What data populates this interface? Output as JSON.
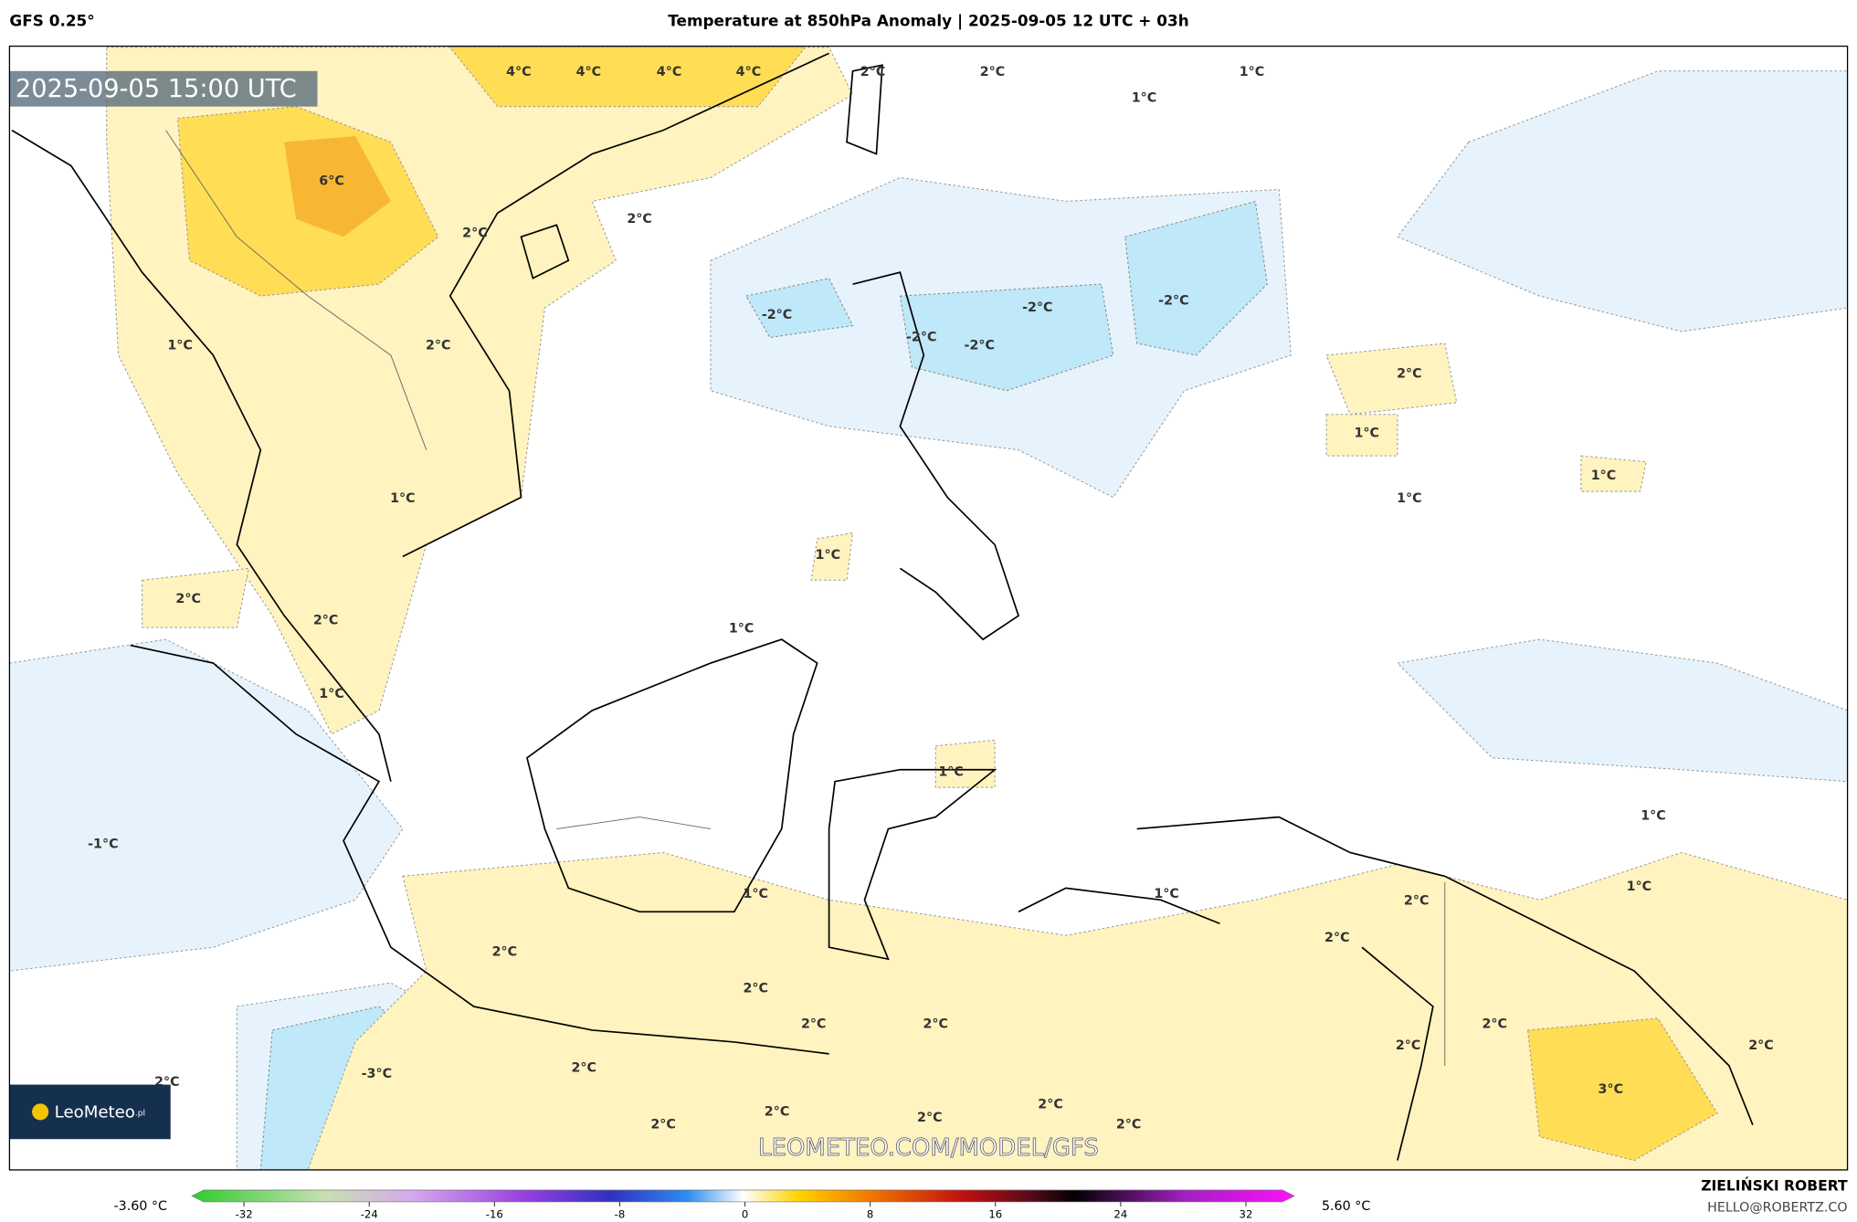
{
  "header": {
    "model": "GFS 0.25°",
    "title": "Temperature at 850hPa Anomaly | 2025-09-05 12 UTC + 03h"
  },
  "map": {
    "timestamp": "2025-09-05 15:00 UTC",
    "watermark": "LEOMETEO.COM/MODEL/GFS",
    "logo": "LeoMeteo",
    "logo_suffix": ".pl",
    "contour_labels": [
      "4°C",
      "4°C",
      "4°C",
      "4°C",
      "2°C",
      "2°C",
      "1°C",
      "1°C",
      "6°C",
      "2°C",
      "2°C",
      "-2°C",
      "-2°C",
      "-2°C",
      "-2°C",
      "-2°C",
      "1°C",
      "2°C",
      "2°C",
      "1°C",
      "1°C",
      "1°C",
      "1°C",
      "1°C",
      "2°C",
      "2°C",
      "1°C",
      "1°C",
      "1°C",
      "-1°C",
      "1°C",
      "1°C",
      "1°C",
      "1°C",
      "2°C",
      "2°C",
      "2°C",
      "2°C",
      "2°C",
      "2°C",
      "2°C",
      "2°C",
      "2°C",
      "2°C",
      "-3°C",
      "3°C",
      "2°C",
      "2°C",
      "2°C",
      "2°C",
      "2°C",
      "2°C"
    ]
  },
  "colorbar": {
    "min_label": "-3.60 °C",
    "max_label": "5.60 °C",
    "ticks": [
      -32,
      -24,
      -16,
      -8,
      0,
      8,
      16,
      24,
      32
    ]
  },
  "credits": {
    "author": "ZIELIŃSKI ROBERT",
    "email": "HELLO@ROBERTZ.CO"
  }
}
